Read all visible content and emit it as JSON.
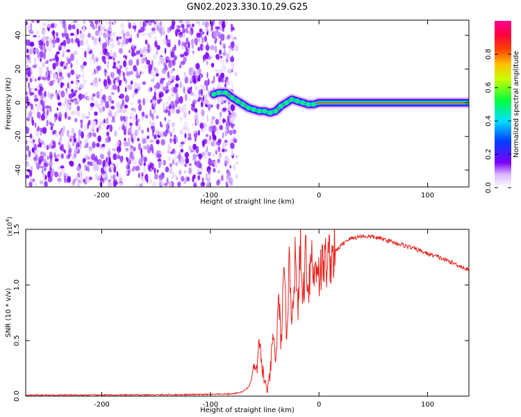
{
  "title": "GN02.2023.330.10.29.G25",
  "chart_data": [
    {
      "type": "heatmap",
      "xlabel": "Height of straight line (km)",
      "ylabel": "Frequency (Hz)",
      "xlim": [
        -270,
        138
      ],
      "ylim": [
        -50,
        49
      ],
      "xticks": [
        -200,
        -100,
        0,
        100
      ],
      "yticks": [
        -40,
        -20,
        0,
        20,
        40
      ],
      "noise_region_x": [
        -270,
        -82
      ],
      "signal_track": {
        "x": [
          -97,
          -92,
          -86,
          -80,
          -75,
          -70,
          -65,
          -60,
          -55,
          -50,
          -45,
          -40,
          -35,
          -30,
          -25,
          -20,
          -15,
          -10,
          -5,
          0,
          20,
          60,
          100,
          138
        ],
        "freq": [
          5,
          6,
          6,
          3,
          1,
          -1,
          -3,
          -4,
          -5,
          -5,
          -6,
          -5,
          -2,
          0,
          2,
          1,
          0,
          -1,
          -1,
          0,
          0,
          0,
          0,
          0
        ]
      },
      "colorbar": {
        "label": "Normalized spectral amplitude",
        "range": [
          0.0,
          1.0
        ],
        "ticks": [
          "0.0",
          "0.2",
          "0.4",
          "0.6",
          "0.8"
        ],
        "colors": [
          "#ffffff",
          "#7b00ff",
          "#0040ff",
          "#00e0ff",
          "#00ff40",
          "#ffff00",
          "#ff8000",
          "#ff0000",
          "#ff0080"
        ]
      },
      "grid": false
    },
    {
      "type": "line",
      "xlabel": "Height of straight line (km)",
      "ylabel": "SNR (10 * v/v)",
      "multiplier_label": "(x10",
      "multiplier_exp": "4",
      "multiplier_close": ")",
      "xlim": [
        -270,
        138
      ],
      "ylim": [
        0,
        1.5
      ],
      "xticks": [
        -200,
        -100,
        0,
        100
      ],
      "yticks": [
        "0.0",
        "0.5",
        "1.0",
        "1.5"
      ],
      "line_color": "#e8211c",
      "series": [
        {
          "x": [
            -270,
            -200,
            -150,
            -100,
            -80,
            -70,
            -65,
            -62,
            -60,
            -58,
            -55,
            -52,
            -50,
            -47,
            -45,
            -42,
            -40,
            -37,
            -35,
            -32,
            -30,
            -27,
            -25,
            -22,
            -20,
            -17,
            -15,
            -12,
            -10,
            -7,
            -5,
            -2,
            0,
            5,
            10,
            15,
            20,
            25,
            30,
            40,
            50,
            60,
            70,
            80,
            90,
            100,
            110,
            120,
            130,
            138
          ],
          "values": [
            0.01,
            0.01,
            0.012,
            0.015,
            0.02,
            0.04,
            0.08,
            0.15,
            0.3,
            0.18,
            0.45,
            0.25,
            0.12,
            0.05,
            0.2,
            0.55,
            0.3,
            0.85,
            0.5,
            1.05,
            0.6,
            1.2,
            0.7,
            1.25,
            0.75,
            1.3,
            0.85,
            1.35,
            0.95,
            1.3,
            1.05,
            1.25,
            1.1,
            1.2,
            1.25,
            1.3,
            1.35,
            1.4,
            1.42,
            1.44,
            1.43,
            1.41,
            1.38,
            1.35,
            1.32,
            1.28,
            1.25,
            1.21,
            1.17,
            1.13
          ]
        }
      ],
      "grid": false
    }
  ]
}
